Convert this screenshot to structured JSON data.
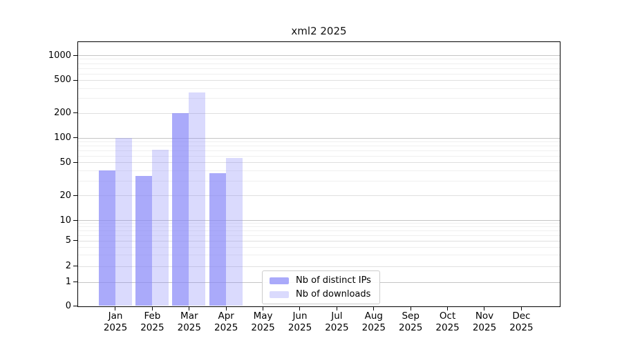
{
  "title": "xml2 2025",
  "chart_data": {
    "type": "bar",
    "title": "xml2 2025",
    "categories": [
      "Jan",
      "Feb",
      "Mar",
      "Apr",
      "May",
      "Jun",
      "Jul",
      "Aug",
      "Sep",
      "Oct",
      "Nov",
      "Dec"
    ],
    "category_year": "2025",
    "y_scale": "log-with-zero-baseline",
    "y_ticks": [
      0,
      1,
      2,
      5,
      10,
      20,
      50,
      100,
      200,
      500,
      1000
    ],
    "ylim": [
      0,
      1500
    ],
    "grid": "on",
    "legend_position": "inside-bottom-center",
    "series": [
      {
        "name": "Nb of distinct IPs",
        "color": "rgba(134,134,248,0.7)",
        "values": [
          40,
          34,
          200,
          37,
          0,
          0,
          0,
          0,
          0,
          0,
          0,
          0
        ]
      },
      {
        "name": "Nb of downloads",
        "color": "rgba(134,134,248,0.3)",
        "values": [
          100,
          72,
          350,
          57,
          0,
          0,
          0,
          0,
          0,
          0,
          0,
          0
        ]
      }
    ]
  }
}
